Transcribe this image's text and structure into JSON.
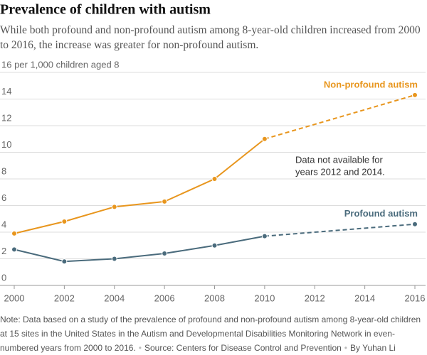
{
  "chart_data": {
    "type": "line",
    "title": "Prevalence of children with autism",
    "subtitle": "While both profound and non-profound autism among 8-year-old children increased from 2000 to 2016, the increase was greater for non-profound autism.",
    "x": [
      2000,
      2002,
      2004,
      2006,
      2008,
      2010,
      2016
    ],
    "series": [
      {
        "name": "Non-profound autism",
        "color": "#e8961e",
        "values": [
          3.9,
          4.8,
          5.9,
          6.3,
          8.0,
          11.0,
          14.3
        ]
      },
      {
        "name": "Profound autism",
        "color": "#4a6b7c",
        "values": [
          2.7,
          1.8,
          2.0,
          2.4,
          3.0,
          3.7,
          4.6
        ]
      }
    ],
    "xlim": [
      2000,
      2016
    ],
    "xticks": [
      2000,
      2002,
      2004,
      2006,
      2008,
      2010,
      2012,
      2014,
      2016
    ],
    "ylim": [
      0,
      16
    ],
    "yticks": [
      0,
      2,
      4,
      6,
      8,
      10,
      12,
      14,
      {
        "value": 16,
        "label": "16 per 1,000 children aged 8"
      }
    ],
    "grid": true,
    "annotation": [
      "Data not available for",
      "years 2012 and 2014."
    ],
    "note": "Note: Data based on a study of the prevalence of profound and non-profound autism among 8-year-old children at 15 sites in the United States in the Autism and Developmental Disabilities Monitoring Network in even-numbered years from 2000 to 2016.",
    "source": "Source: Centers for Disease Control and Prevention",
    "byline": "By Yuhan Li"
  }
}
